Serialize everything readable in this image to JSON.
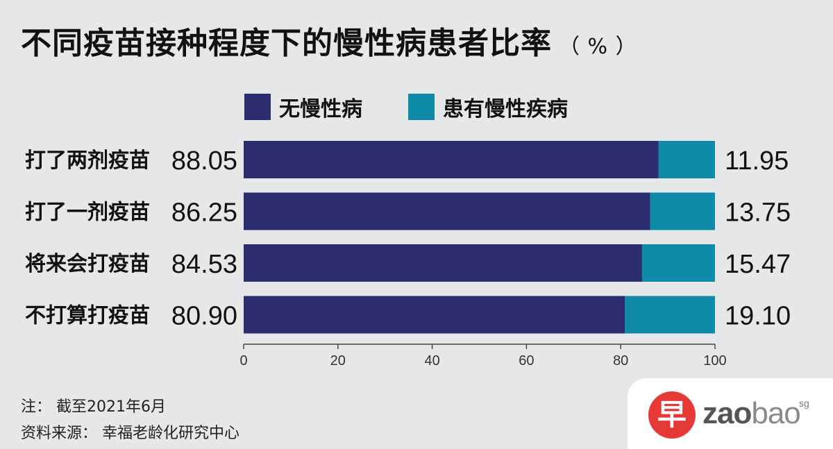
{
  "title": "不同疫苗接种程度下的慢性病患者比率",
  "title_unit": "（ % ）",
  "colors": {
    "no_chronic": "#2b2d6e",
    "has_chronic": "#0f8aa8",
    "axis": "#444444"
  },
  "chart_data": {
    "type": "bar",
    "orientation": "horizontal",
    "stacked": true,
    "categories": [
      "打了两剂疫苗",
      "打了一剂疫苗",
      "将来会打疫苗",
      "不打算打疫苗"
    ],
    "series": [
      {
        "name": "无慢性病",
        "values": [
          88.05,
          86.25,
          84.53,
          80.9
        ],
        "labels": [
          "88.05",
          "86.25",
          "84.53",
          "80.90"
        ]
      },
      {
        "name": "患有慢性疾病",
        "values": [
          11.95,
          13.75,
          15.47,
          19.1
        ],
        "labels": [
          "11.95",
          "13.75",
          "15.47",
          "19.10"
        ]
      }
    ],
    "xlim": [
      0,
      100
    ],
    "xticks": [
      "0",
      "20",
      "40",
      "60",
      "80",
      "100"
    ],
    "legend_position": "top"
  },
  "footnotes": {
    "note": "注：  截至2021年6月",
    "source": "资料来源：  幸福老龄化研究中心"
  },
  "logo": {
    "mark": "早",
    "text_bold": "zao",
    "text_light": "bao",
    "suffix": "sg"
  }
}
